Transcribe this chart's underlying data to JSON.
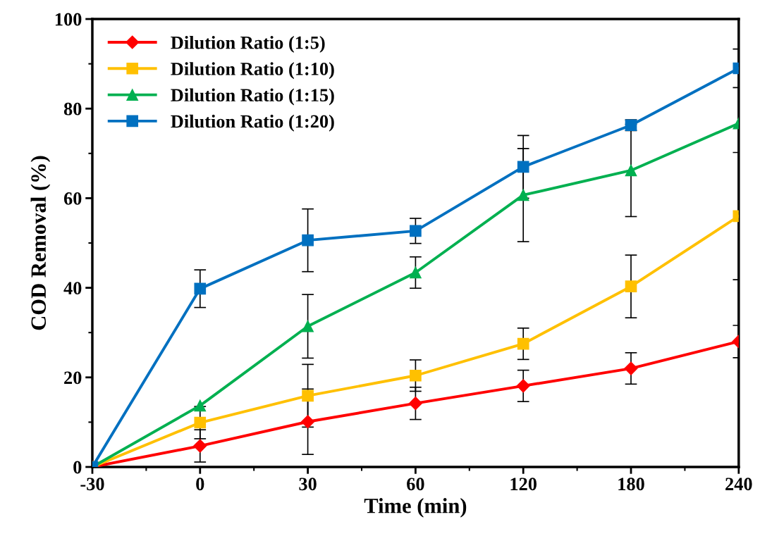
{
  "chart_data": {
    "type": "line",
    "xlabel": "Time (min)",
    "ylabel": "COD Removal (%)",
    "categories": [
      "-30",
      "0",
      "30",
      "60",
      "120",
      "180",
      "240"
    ],
    "series": [
      {
        "name": "Dilution Ratio (1:5)",
        "color": "#ff0000",
        "marker": "diamond",
        "values": [
          0,
          4.7,
          10.1,
          14.2,
          18.1,
          22.0,
          28.0
        ],
        "errors": [
          null,
          3.6,
          7.3,
          3.6,
          3.5,
          3.5,
          3.6
        ]
      },
      {
        "name": "Dilution Ratio (1:10)",
        "color": "#ffc000",
        "marker": "square",
        "values": [
          0,
          9.9,
          15.9,
          20.4,
          27.5,
          40.3,
          56.0
        ],
        "errors": [
          null,
          3.6,
          7.0,
          3.5,
          3.5,
          7.0,
          14.2
        ]
      },
      {
        "name": "Dilution Ratio (1:15)",
        "color": "#00b050",
        "marker": "triangle",
        "values": [
          0,
          13.7,
          31.4,
          43.4,
          60.7,
          66.2,
          76.7
        ],
        "errors": [
          null,
          null,
          7.1,
          3.5,
          10.4,
          10.3,
          null
        ]
      },
      {
        "name": "Dilution Ratio (1:20)",
        "color": "#0070c0",
        "marker": "square",
        "values": [
          0,
          39.8,
          50.6,
          52.7,
          67.0,
          76.3,
          89.0
        ],
        "errors": [
          null,
          4.2,
          7.0,
          2.8,
          7.0,
          1.2,
          4.3
        ]
      }
    ],
    "ylim": [
      0,
      100
    ],
    "yticks": [
      0,
      20,
      40,
      60,
      80,
      100
    ],
    "grid": false,
    "legend": "top left",
    "line_style": "solid"
  }
}
